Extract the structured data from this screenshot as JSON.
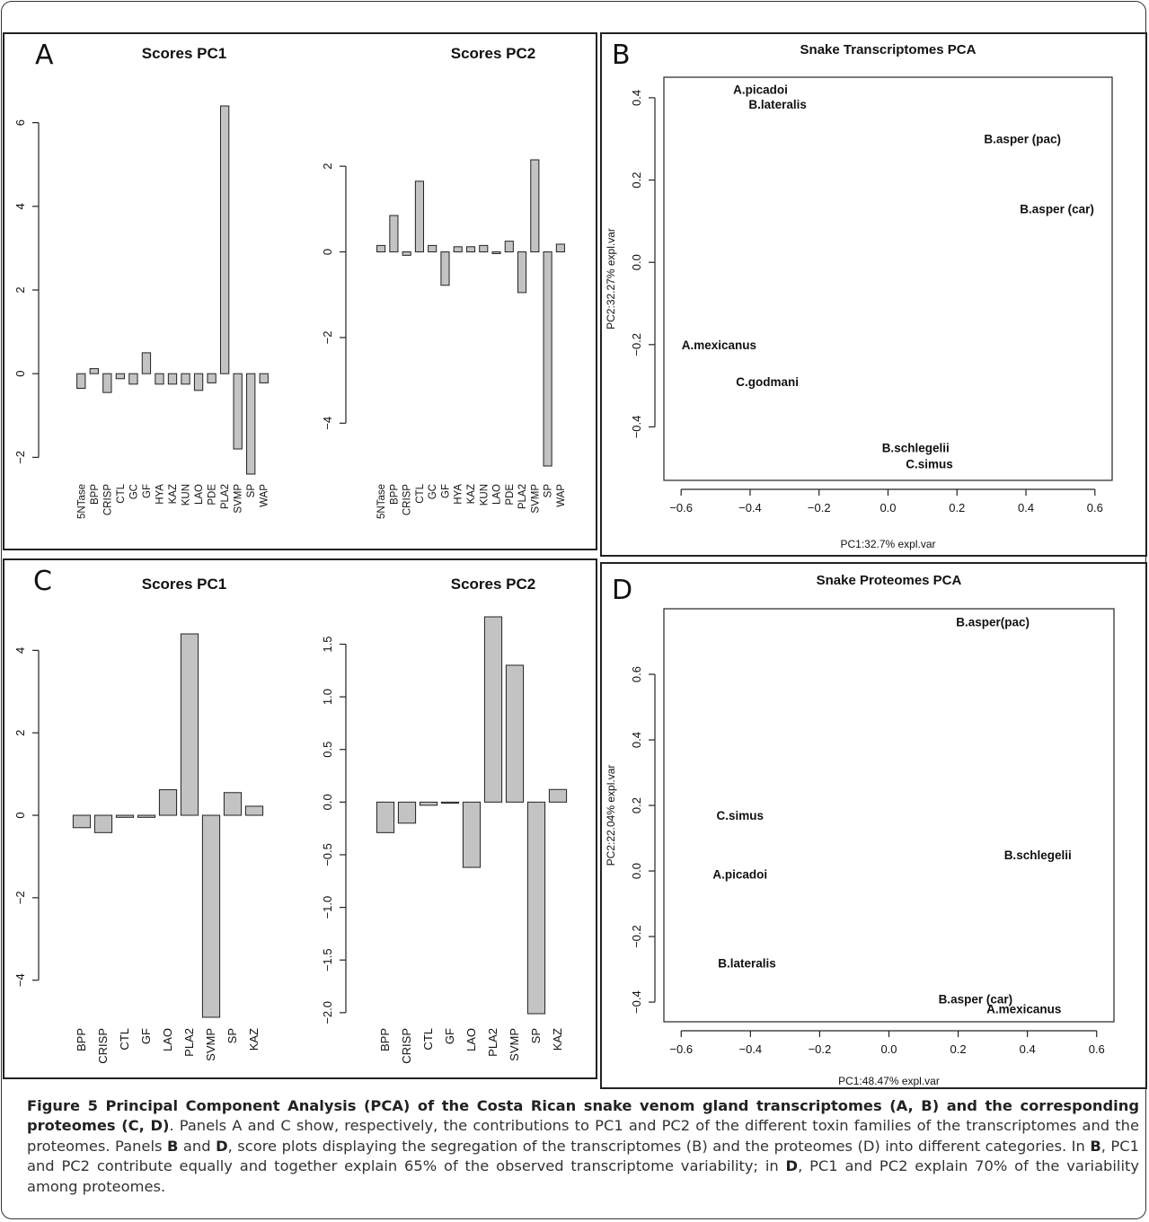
{
  "panels": {
    "A": {
      "letter": "A",
      "charts": [
        {
          "type": "bar",
          "title": "Scores PC1",
          "categories": [
            "5NTase",
            "BPP",
            "CRISP",
            "CTL",
            "GC",
            "GF",
            "HYA",
            "KAZ",
            "KUN",
            "LAO",
            "PDE",
            "PLA2",
            "SVMP",
            "SP",
            "WAP"
          ],
          "values": [
            -0.35,
            0.12,
            -0.45,
            -0.12,
            -0.25,
            0.5,
            -0.25,
            -0.25,
            -0.25,
            -0.4,
            -0.22,
            6.4,
            -1.8,
            -2.4,
            -0.22
          ],
          "ylim": [
            -2.4,
            6.4
          ],
          "yticks": [
            -2,
            0,
            2,
            4,
            6
          ],
          "ytick_labels": [
            "−2",
            "0",
            "2",
            "4",
            "6"
          ]
        },
        {
          "type": "bar",
          "title": "Scores PC2",
          "categories": [
            "5NTase",
            "BPP",
            "CRISP",
            "CTL",
            "GC",
            "GF",
            "HYA",
            "KAZ",
            "KUN",
            "LAO",
            "PDE",
            "PLA2",
            "SVMP",
            "SP",
            "WAP"
          ],
          "values": [
            0.15,
            0.85,
            -0.08,
            1.65,
            0.15,
            -0.78,
            0.12,
            0.12,
            0.15,
            -0.04,
            0.25,
            -0.95,
            2.15,
            -5.0,
            0.18
          ],
          "ylim": [
            -5.0,
            2.15
          ],
          "yticks": [
            -4,
            -2,
            0,
            2
          ],
          "ytick_labels": [
            "−4",
            "−2",
            "0",
            "2"
          ]
        }
      ]
    },
    "B": {
      "letter": "B",
      "chart": {
        "type": "scatter",
        "title": "Snake Transcriptomes PCA",
        "xlabel": "PC1:32.7% expl.var",
        "ylabel": "PC2:32.27% expl.var",
        "xlim": [
          -0.65,
          0.65
        ],
        "ylim": [
          -0.53,
          0.45
        ],
        "xticks": [
          -0.6,
          -0.4,
          -0.2,
          0.0,
          0.2,
          0.4,
          0.6
        ],
        "xtick_labels": [
          "−0.6",
          "−0.4",
          "−0.2",
          "0.0",
          "0.2",
          "0.4",
          "0.6"
        ],
        "yticks": [
          -0.4,
          -0.2,
          0.0,
          0.2,
          0.4
        ],
        "ytick_labels": [
          "−0.4",
          "−0.2",
          "0.0",
          "0.2",
          "0.4"
        ],
        "points": [
          {
            "label": "A.picadoi",
            "x": -0.37,
            "y": 0.42
          },
          {
            "label": "B.lateralis",
            "x": -0.32,
            "y": 0.385
          },
          {
            "label": "B.asper (pac)",
            "x": 0.39,
            "y": 0.3
          },
          {
            "label": "B.asper (car)",
            "x": 0.49,
            "y": 0.13
          },
          {
            "label": "A.mexicanus",
            "x": -0.49,
            "y": -0.2
          },
          {
            "label": "C.godmani",
            "x": -0.35,
            "y": -0.29
          },
          {
            "label": "B.schlegelii",
            "x": 0.08,
            "y": -0.45
          },
          {
            "label": "C.simus",
            "x": 0.12,
            "y": -0.49
          }
        ]
      }
    },
    "C": {
      "letter": "C",
      "charts": [
        {
          "type": "bar",
          "title": "Scores PC1",
          "categories": [
            "BPP",
            "CRISP",
            "CTL",
            "GF",
            "LAO",
            "PLA2",
            "SVMP",
            "SP",
            "KAZ"
          ],
          "values": [
            -0.3,
            -0.42,
            -0.05,
            -0.05,
            0.62,
            4.4,
            -4.9,
            0.55,
            0.22
          ],
          "ylim": [
            -4.9,
            4.4
          ],
          "yticks": [
            -4,
            -2,
            0,
            2,
            4
          ],
          "ytick_labels": [
            "−4",
            "−2",
            "0",
            "2",
            "4"
          ]
        },
        {
          "type": "bar",
          "title": "Scores PC2",
          "categories": [
            "BPP",
            "CRISP",
            "CTL",
            "GF",
            "LAO",
            "PLA2",
            "SVMP",
            "SP",
            "KAZ"
          ],
          "values": [
            -0.29,
            -0.2,
            -0.03,
            -0.01,
            -0.62,
            1.76,
            1.3,
            -2.01,
            0.12
          ],
          "ylim": [
            -2.01,
            1.76
          ],
          "yticks": [
            -2.0,
            -1.5,
            -1.0,
            -0.5,
            0.0,
            0.5,
            1.0,
            1.5
          ],
          "ytick_labels": [
            "−2.0",
            "−1.5",
            "−1.0",
            "−0.5",
            "0.0",
            "0.5",
            "1.0",
            "1.5"
          ]
        }
      ]
    },
    "D": {
      "letter": "D",
      "chart": {
        "type": "scatter",
        "title": "Snake Proteomes PCA",
        "xlabel": "PC1:48.47% expl.var",
        "ylabel": "PC2:22.04% expl.var",
        "xlim": [
          -0.65,
          0.65
        ],
        "ylim": [
          -0.46,
          0.8
        ],
        "xticks": [
          -0.6,
          -0.4,
          -0.2,
          0.0,
          0.2,
          0.4,
          0.6
        ],
        "xtick_labels": [
          "−0.6",
          "−0.4",
          "−0.2",
          "0.0",
          "0.2",
          "0.4",
          "0.6"
        ],
        "yticks": [
          -0.4,
          -0.2,
          0.0,
          0.2,
          0.4,
          0.6
        ],
        "ytick_labels": [
          "−0.4",
          "−0.2",
          "0.0",
          "0.2",
          "0.4",
          "0.6"
        ],
        "points": [
          {
            "label": "B.asper(pac)",
            "x": 0.3,
            "y": 0.76
          },
          {
            "label": "C.simus",
            "x": -0.43,
            "y": 0.17
          },
          {
            "label": "B.schlegelii",
            "x": 0.43,
            "y": 0.05
          },
          {
            "label": "A.picadoi",
            "x": -0.43,
            "y": -0.01
          },
          {
            "label": "B.lateralis",
            "x": -0.41,
            "y": -0.28
          },
          {
            "label": "B.asper (car)",
            "x": 0.25,
            "y": -0.39
          },
          {
            "label": "A.mexicanus",
            "x": 0.39,
            "y": -0.42
          }
        ]
      }
    }
  },
  "caption": {
    "title": "Figure 5 Principal Component Analysis (PCA) of the Costa Rican snake venom gland transcriptomes (A, B) and the corresponding proteomes (C, D)",
    "body_1": ". Panels A and C show, respectively, the contributions to PC1 and PC2 of the different toxin families of the transcriptomes and the proteomes. Panels ",
    "b1": "B",
    "body_2": " and ",
    "b2": "D",
    "body_3": ", score plots displaying the segregation of the transcriptomes (B) and the proteomes (D) into different categories. In ",
    "b3": "B",
    "body_4": ", PC1 and PC2 contribute equally and together explain 65% of the observed transcriptome variability; in ",
    "b4": "D",
    "body_5": ", PC1 and PC2 explain 70% of the variability among proteomes."
  },
  "colors": {
    "bar_fill": "#c3c3c3",
    "bar_stroke": "#222222",
    "axis": "#222222",
    "text": "#111111"
  }
}
